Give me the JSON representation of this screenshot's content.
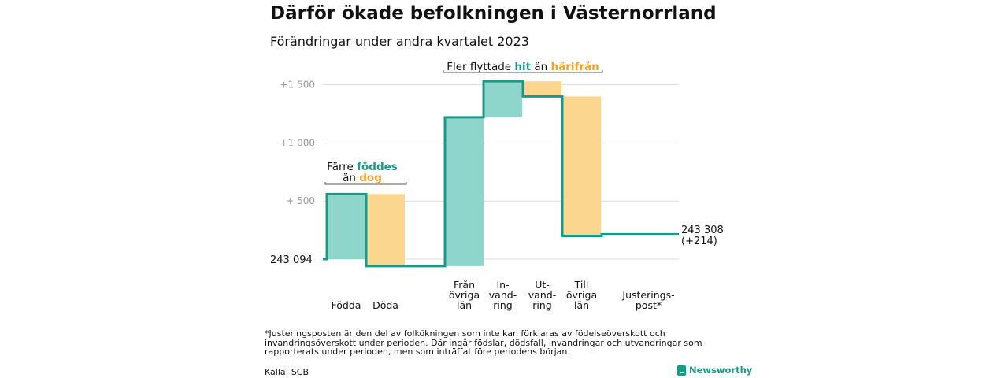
{
  "title": "Därför ökade befolkningen i Västernorrland",
  "subtitle": "Förändringar under andra kvartalet 2023",
  "chart_data": {
    "type": "waterfall",
    "start_label": "243 094",
    "end_label_line1": "243 308",
    "end_label_line2": "(+214)",
    "y_ticks": [
      {
        "value": 500,
        "label": "+   500"
      },
      {
        "value": 1000,
        "label": "+1   000"
      },
      {
        "value": 1500,
        "label": "+1   500"
      }
    ],
    "ylim": [
      -60,
      1640
    ],
    "steps": [
      {
        "label_lines": [
          "Födda"
        ],
        "from": 0,
        "to": 560,
        "kind": "increase"
      },
      {
        "label_lines": [
          "Döda"
        ],
        "from": 560,
        "to": -60,
        "kind": "decrease"
      },
      {
        "label_lines": [
          "Från",
          "övriga",
          "län"
        ],
        "from": -60,
        "to": 1220,
        "kind": "increase"
      },
      {
        "label_lines": [
          "In-",
          "vand-",
          "ring"
        ],
        "from": 1220,
        "to": 1530,
        "kind": "increase"
      },
      {
        "label_lines": [
          "Ut-",
          "vand-",
          "ring"
        ],
        "from": 1530,
        "to": 1400,
        "kind": "decrease"
      },
      {
        "label_lines": [
          "Till",
          "övriga",
          "län"
        ],
        "from": 1400,
        "to": 200,
        "kind": "decrease"
      },
      {
        "label_lines": [
          "Justerings-",
          "post*"
        ],
        "from": 200,
        "to": 214,
        "kind": "adjust"
      }
    ],
    "annotations": {
      "births": {
        "pre": "Färre ",
        "hl1": "föddes",
        "mid": "än ",
        "hl2": "dog"
      },
      "migration": {
        "pre": "Fler flyttade ",
        "hl1": "hit",
        "mid": " än ",
        "hl2": "härifrån"
      }
    },
    "colors": {
      "increase": "#8ed6cc",
      "decrease": "#fbd68f",
      "line": "#1a9a86",
      "teal_text": "#1a9a86",
      "orange_text": "#f0a12e",
      "grid": "#dddddd",
      "tick_text": "#999999"
    }
  },
  "footnote": "*Justeringsposten är den del av folkökningen som inte kan förklaras av födelseöverskott och invandringsöverskott under perioden. Där ingår födslar, dödsfall, invandringar och utvandringar som rapporterats under perioden, men som inträffat före periodens början.",
  "source": "Källa: SCB",
  "brand": "Newsworthy",
  "brand_icon": "bar-chart-icon"
}
